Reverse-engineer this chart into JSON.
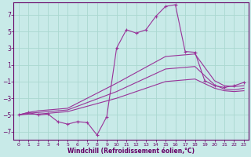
{
  "bg_color": "#c8eae8",
  "line_color": "#993399",
  "grid_color": "#aad8d0",
  "xlabel": "Windchill (Refroidissement éolien,°C)",
  "xlabel_color": "#660066",
  "tick_color": "#660066",
  "xlim": [
    -0.5,
    23.5
  ],
  "ylim": [
    -8,
    8.5
  ],
  "yticks": [
    -7,
    -5,
    -3,
    -1,
    1,
    3,
    5,
    7
  ],
  "xticks": [
    0,
    1,
    2,
    3,
    4,
    5,
    6,
    7,
    8,
    9,
    10,
    11,
    12,
    13,
    14,
    15,
    16,
    17,
    18,
    19,
    20,
    21,
    22,
    23
  ],
  "series1": [
    [
      0,
      -5.0
    ],
    [
      1,
      -4.7
    ],
    [
      2,
      -5.0
    ],
    [
      3,
      -4.9
    ],
    [
      4,
      -5.8
    ],
    [
      5,
      -6.1
    ],
    [
      6,
      -5.8
    ],
    [
      7,
      -5.9
    ],
    [
      8,
      -7.4
    ],
    [
      9,
      -5.2
    ],
    [
      10,
      3.0
    ],
    [
      11,
      5.2
    ],
    [
      12,
      4.8
    ],
    [
      13,
      5.2
    ],
    [
      14,
      6.8
    ],
    [
      15,
      8.0
    ],
    [
      16,
      8.2
    ],
    [
      17,
      2.6
    ],
    [
      18,
      2.5
    ],
    [
      19,
      -0.9
    ],
    [
      20,
      -1.5
    ],
    [
      21,
      -1.7
    ],
    [
      22,
      -1.5
    ],
    [
      23,
      -1.1
    ]
  ],
  "series2": [
    [
      0,
      -5.0
    ],
    [
      1,
      -4.7
    ],
    [
      2,
      -4.5
    ],
    [
      3,
      -4.4
    ],
    [
      4,
      -4.3
    ],
    [
      5,
      -4.2
    ],
    [
      10,
      -1.2
    ],
    [
      15,
      2.0
    ],
    [
      18,
      2.3
    ],
    [
      20,
      -0.9
    ],
    [
      21,
      -1.5
    ],
    [
      22,
      -1.6
    ],
    [
      23,
      -1.5
    ]
  ],
  "series3": [
    [
      0,
      -5.0
    ],
    [
      1,
      -4.8
    ],
    [
      2,
      -4.7
    ],
    [
      3,
      -4.6
    ],
    [
      4,
      -4.5
    ],
    [
      5,
      -4.4
    ],
    [
      10,
      -2.2
    ],
    [
      15,
      0.5
    ],
    [
      18,
      0.8
    ],
    [
      20,
      -1.4
    ],
    [
      21,
      -1.9
    ],
    [
      22,
      -2.0
    ],
    [
      23,
      -1.8
    ]
  ],
  "series4": [
    [
      0,
      -5.0
    ],
    [
      1,
      -4.9
    ],
    [
      2,
      -4.9
    ],
    [
      3,
      -4.8
    ],
    [
      4,
      -4.7
    ],
    [
      5,
      -4.6
    ],
    [
      10,
      -3.0
    ],
    [
      15,
      -1.0
    ],
    [
      18,
      -0.7
    ],
    [
      20,
      -1.8
    ],
    [
      21,
      -2.1
    ],
    [
      22,
      -2.2
    ],
    [
      23,
      -2.1
    ]
  ]
}
